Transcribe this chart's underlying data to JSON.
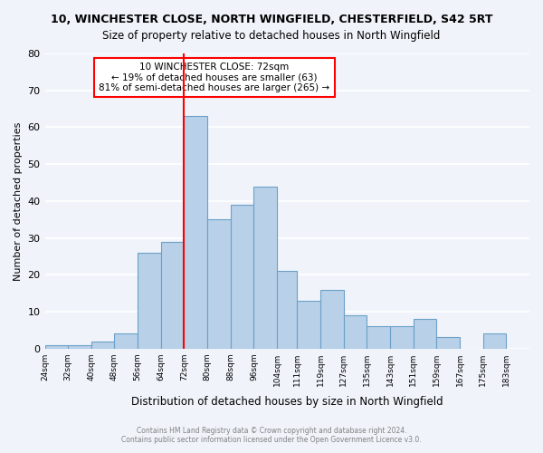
{
  "title": "10, WINCHESTER CLOSE, NORTH WINGFIELD, CHESTERFIELD, S42 5RT",
  "subtitle": "Size of property relative to detached houses in North Wingfield",
  "xlabel": "Distribution of detached houses by size in North Wingfield",
  "ylabel": "Number of detached properties",
  "bin_edges": [
    24,
    32,
    40,
    48,
    56,
    64,
    72,
    80,
    88,
    96,
    104,
    111,
    119,
    127,
    135,
    143,
    151,
    159,
    167,
    175,
    183
  ],
  "bar_heights": [
    1,
    1,
    2,
    4,
    26,
    29,
    63,
    35,
    39,
    44,
    21,
    13,
    16,
    9,
    6,
    6,
    8,
    3,
    0,
    4
  ],
  "bar_color": "#b8d0e8",
  "bar_edge_color": "#6ca0c8",
  "vline_x": 72,
  "vline_color": "red",
  "ylim": [
    0,
    80
  ],
  "yticks": [
    0,
    10,
    20,
    30,
    40,
    50,
    60,
    70,
    80
  ],
  "annotation_line1": "10 WINCHESTER CLOSE: 72sqm",
  "annotation_line2": "← 19% of detached houses are smaller (63)",
  "annotation_line3": "81% of semi-detached houses are larger (265) →",
  "annotation_box_color": "white",
  "annotation_box_edge_color": "red",
  "footer_line1": "Contains HM Land Registry data © Crown copyright and database right 2024.",
  "footer_line2": "Contains public sector information licensed under the Open Government Licence v3.0.",
  "bg_color": "#f0f4fa",
  "grid_color": "white"
}
